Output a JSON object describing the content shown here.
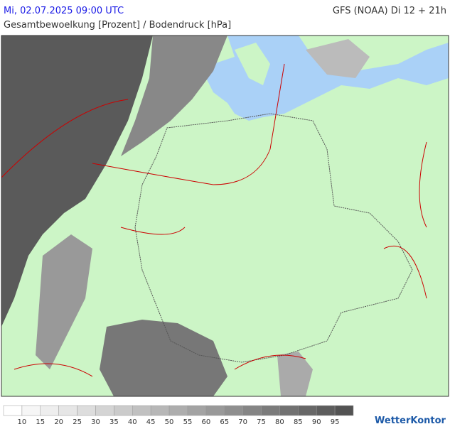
{
  "header": {
    "datetime": "Mi, 02.07.2025 09:00 UTC",
    "model": "GFS (NOAA) Di 12 + 21h",
    "subtitle": "Gesamtbewoelkung [Prozent] / Bodendruck [hPa]"
  },
  "legend": {
    "labels": [
      10,
      15,
      20,
      25,
      30,
      35,
      40,
      45,
      50,
      55,
      60,
      65,
      70,
      75,
      80,
      85,
      90,
      95
    ],
    "colors": [
      "#ffffff",
      "#f6f6f6",
      "#eeeeee",
      "#e6e6e6",
      "#dddddd",
      "#d4d4d4",
      "#cbcbcb",
      "#c1c1c1",
      "#b7b7b7",
      "#adadad",
      "#a3a3a3",
      "#999999",
      "#8f8f8f",
      "#858585",
      "#7b7b7b",
      "#717171",
      "#676767",
      "#5d5d5d",
      "#535353"
    ]
  },
  "brand": "WetterKontor"
}
